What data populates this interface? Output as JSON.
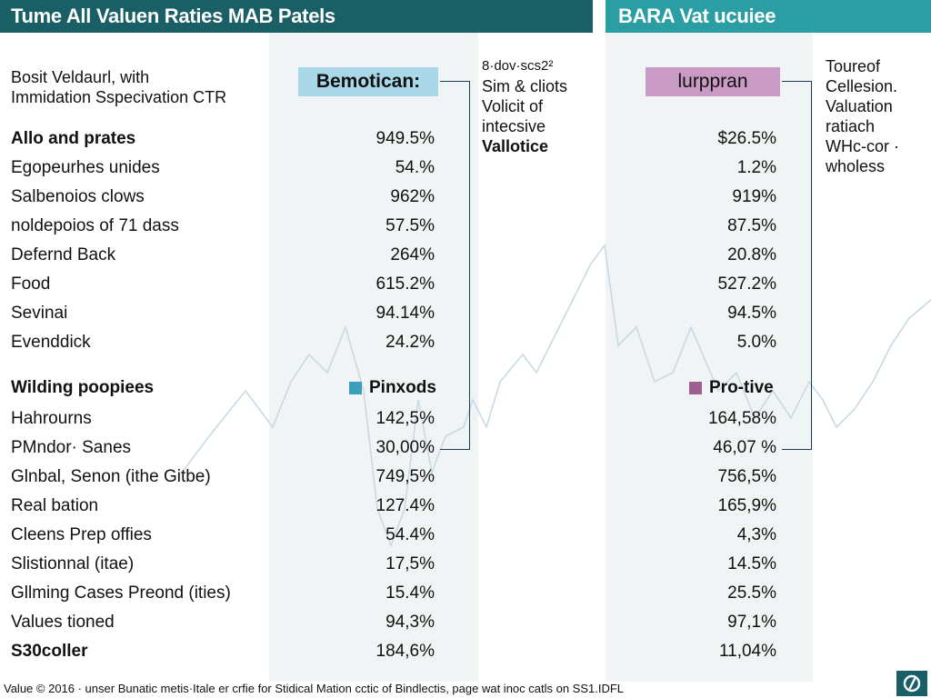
{
  "header": {
    "left_title": "Tume All Valuen Raties MAB Patels",
    "right_title": "BARA Vat ucuiee"
  },
  "intro": {
    "line1": "Bosit Veldaurl, with",
    "line2": "Immidation Sspecivation CTR"
  },
  "chips": {
    "col1": "Bemotican:",
    "col2": "lurppran"
  },
  "notes": {
    "mid": [
      "8·dov·scs2²",
      "Sim & cliots",
      "Volicit of",
      "intecsive",
      "Vallotice"
    ],
    "right": [
      "Toureof",
      "Cellesion.",
      "Valuation",
      "ratiach",
      "WHc-cor ·",
      "wholess"
    ]
  },
  "sections": [
    {
      "title": "Allo and prates",
      "title_v1": "949.5%",
      "title_v2": "$26.5%",
      "rows": [
        {
          "label": "Egopeurhes unides",
          "v1": "54.%",
          "v2": "1.2%"
        },
        {
          "label": "Salbenoios clows",
          "v1": "962%",
          "v2": "919%"
        },
        {
          "label": "noldepoios of 71 dass",
          "v1": "57.5%",
          "v2": "87.5%"
        },
        {
          "label": "Defernd Back",
          "v1": "264%",
          "v2": "20.8%"
        },
        {
          "label": "Food",
          "v1": "615.2%",
          "v2": "527.2%"
        },
        {
          "label": "Sevinai",
          "v1": "94.14%",
          "v2": "94.5%"
        },
        {
          "label": "Evenddick",
          "v1": "24.2%",
          "v2": "5.0%"
        }
      ]
    },
    {
      "title": "Wilding poopiees",
      "legend_v1": "Pinxods",
      "legend_v2": "Pro-tive",
      "rows": [
        {
          "label": "Hahrourns",
          "v1": "142,5%",
          "v2": "164,58%"
        },
        {
          "label": "PMndor· Sanes",
          "v1": "30,00%",
          "v2": "46,07 %"
        },
        {
          "label": "Glnbal, Senon (ithe Gitbe)",
          "v1": "749,5%",
          "v2": "756,5%"
        },
        {
          "label": "Real bation",
          "v1": "127.4%",
          "v2": "165,9%"
        },
        {
          "label": "Cleens Prep offies",
          "v1": "54.4%",
          "v2": "4,3%"
        },
        {
          "label": "Slistionnal (itae)",
          "v1": "17,5%",
          "v2": "14.5%"
        },
        {
          "label": "Gllming Cases Preond (ities)",
          "v1": "15.4%",
          "v2": "25.5%"
        },
        {
          "label": "Values tioned",
          "v1": "94,3%",
          "v2": "97,1%"
        },
        {
          "label": "S30coller",
          "v1": "184,6%",
          "v2": "11,04%",
          "bold": true
        }
      ]
    }
  ],
  "footer": "Value © 2016 · unser Bunatic metis·Itale er crfie for Stidical Mation cctic of Bindlectis, page wat inoc catls on SS1.IDFL",
  "colors": {
    "header_left": "#1a5f66",
    "header_right": "#2a9ea3",
    "chip_blue": "#a9d8e8",
    "chip_purple": "#c99ac4",
    "legend_blue": "#3a9fb8",
    "legend_purple": "#a0608f"
  },
  "badge_icon": "logo-icon"
}
